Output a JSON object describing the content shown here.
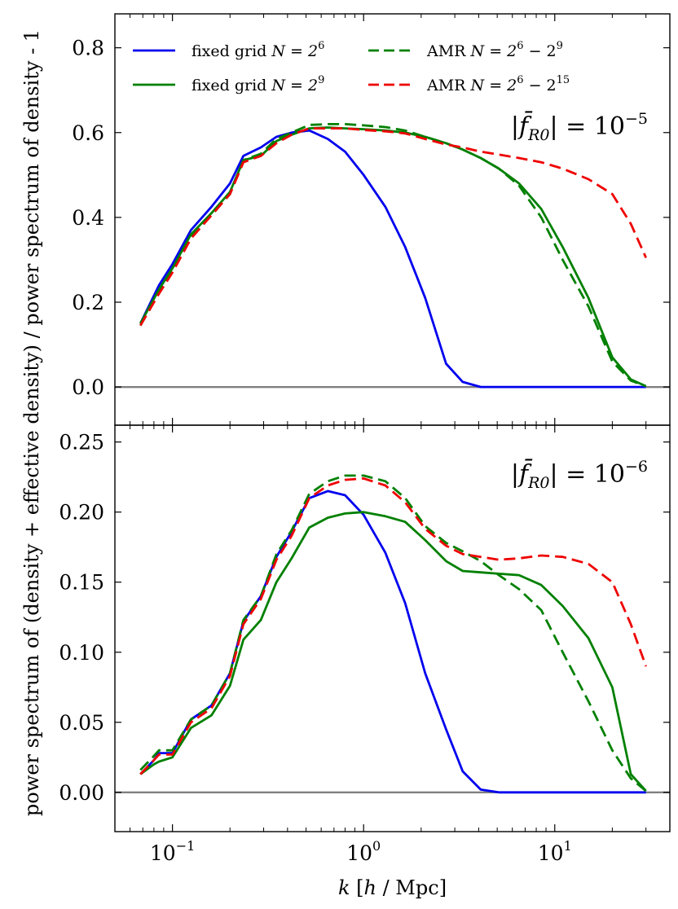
{
  "chart_data": {
    "type": "line",
    "ylabel": "power spectrum of (density + effective density) / power spectrum of density - 1",
    "xlabel": {
      "k": "k",
      "unit_open": "[",
      "unit_h": "h",
      "unit_sep": " / ",
      "unit_mpc": "Mpc",
      "unit_close": "]"
    },
    "xscale": "log",
    "xlim": [
      0.05,
      40
    ],
    "shared_x": true,
    "xticks": [
      {
        "value": 0.1,
        "base": "10",
        "exp": "−1"
      },
      {
        "value": 1,
        "base": "10",
        "exp": "0"
      },
      {
        "value": 10,
        "base": "10",
        "exp": "1"
      }
    ],
    "legend": {
      "placement": "top",
      "entries": [
        {
          "text": "fixed grid ",
          "math": "N = 2",
          "sup": "6",
          "color": "#0000ee",
          "dash": "solid"
        },
        {
          "text": "AMR ",
          "math": "N = 2",
          "sup": "6",
          "tail": " − 2",
          "tail_sup": "9",
          "color": "#008000",
          "dash": "dashed"
        },
        {
          "text": "fixed grid ",
          "math": "N = 2",
          "sup": "9",
          "color": "#008000",
          "dash": "solid"
        },
        {
          "text": "AMR ",
          "math": "N = 2",
          "sup": "6",
          "tail": " − 2",
          "tail_sup": "15",
          "color": "#ee0000",
          "dash": "dashed"
        }
      ]
    },
    "panels": [
      {
        "annotation": {
          "lhs": "|f̄",
          "sub": "R0",
          "rhs": "| = 10",
          "exp": "−5"
        },
        "ylim": [
          -0.09,
          0.88
        ],
        "yticks": [
          "0.0",
          "0.2",
          "0.4",
          "0.6",
          "0.8"
        ],
        "ytick_values": [
          0.0,
          0.2,
          0.4,
          0.6,
          0.8
        ],
        "hline": 0,
        "series": [
          {
            "key": "fixed_2e6",
            "color": "#0000ee",
            "dash": "solid",
            "x": [
              0.068,
              0.085,
              0.1,
              0.125,
              0.16,
              0.2,
              0.235,
              0.29,
              0.35,
              0.42,
              0.52,
              0.65,
              0.8,
              1.0,
              1.3,
              1.65,
              2.1,
              2.7,
              3.3,
              4.1,
              5.1,
              6.5,
              8.5,
              11,
              15,
              20,
              30
            ],
            "y": [
              0.15,
              0.24,
              0.29,
              0.37,
              0.425,
              0.48,
              0.545,
              0.565,
              0.59,
              0.6,
              0.605,
              0.585,
              0.555,
              0.5,
              0.425,
              0.33,
              0.21,
              0.055,
              0.012,
              0.0,
              0.0,
              0.0,
              0.0,
              0.0,
              0.0,
              0.0,
              0.0
            ]
          },
          {
            "key": "fixed_2e9",
            "color": "#008000",
            "dash": "solid",
            "x": [
              0.068,
              0.085,
              0.1,
              0.125,
              0.16,
              0.2,
              0.235,
              0.29,
              0.35,
              0.42,
              0.52,
              0.65,
              0.8,
              1.0,
              1.3,
              1.65,
              2.1,
              2.7,
              3.3,
              4.1,
              5.1,
              6.5,
              8.5,
              11,
              15,
              20,
              25,
              30
            ],
            "y": [
              0.15,
              0.23,
              0.28,
              0.36,
              0.41,
              0.46,
              0.535,
              0.545,
              0.58,
              0.595,
              0.61,
              0.612,
              0.61,
              0.608,
              0.605,
              0.6,
              0.59,
              0.575,
              0.56,
              0.54,
              0.515,
              0.48,
              0.42,
              0.33,
              0.21,
              0.07,
              0.018,
              0.002
            ]
          },
          {
            "key": "amr_2e6_2e9",
            "color": "#008000",
            "dash": "dashed",
            "x": [
              0.068,
              0.085,
              0.1,
              0.125,
              0.16,
              0.2,
              0.235,
              0.29,
              0.35,
              0.42,
              0.52,
              0.65,
              0.8,
              1.0,
              1.3,
              1.65,
              2.1,
              2.7,
              3.3,
              4.1,
              5.1,
              6.5,
              8.5,
              11,
              15,
              20,
              25,
              30
            ],
            "y": [
              0.145,
              0.225,
              0.275,
              0.355,
              0.405,
              0.455,
              0.535,
              0.55,
              0.585,
              0.6,
              0.618,
              0.62,
              0.62,
              0.617,
              0.613,
              0.605,
              0.59,
              0.575,
              0.56,
              0.54,
              0.515,
              0.475,
              0.4,
              0.3,
              0.19,
              0.06,
              0.015,
              0.002
            ]
          },
          {
            "key": "amr_2e6_2e15",
            "color": "#ee0000",
            "dash": "dashed",
            "x": [
              0.068,
              0.085,
              0.1,
              0.125,
              0.16,
              0.2,
              0.235,
              0.29,
              0.35,
              0.42,
              0.52,
              0.65,
              0.8,
              1.0,
              1.3,
              1.65,
              2.1,
              2.7,
              3.3,
              4.1,
              5.1,
              6.5,
              8.5,
              11,
              15,
              20,
              25,
              30
            ],
            "y": [
              0.145,
              0.22,
              0.27,
              0.35,
              0.405,
              0.455,
              0.53,
              0.545,
              0.575,
              0.595,
              0.61,
              0.61,
              0.61,
              0.606,
              0.603,
              0.598,
              0.585,
              0.572,
              0.565,
              0.555,
              0.548,
              0.54,
              0.53,
              0.515,
              0.49,
              0.455,
              0.385,
              0.305
            ]
          }
        ]
      },
      {
        "annotation": {
          "lhs": "|f̄",
          "sub": "R0",
          "rhs": "| = 10",
          "exp": "−6"
        },
        "ylim": [
          -0.028,
          0.262
        ],
        "yticks": [
          "0.00",
          "0.05",
          "0.10",
          "0.15",
          "0.20",
          "0.25"
        ],
        "ytick_values": [
          0.0,
          0.05,
          0.1,
          0.15,
          0.2,
          0.25
        ],
        "hline": 0,
        "series": [
          {
            "key": "fixed_2e6",
            "color": "#0000ee",
            "dash": "solid",
            "x": [
              0.068,
              0.08,
              0.085,
              0.1,
              0.125,
              0.16,
              0.2,
              0.235,
              0.29,
              0.35,
              0.42,
              0.52,
              0.65,
              0.8,
              1.0,
              1.3,
              1.65,
              2.1,
              2.7,
              3.3,
              4.1,
              5.1,
              6.5,
              8.5,
              11,
              15,
              20,
              30
            ],
            "y": [
              0.013,
              0.023,
              0.028,
              0.028,
              0.052,
              0.062,
              0.085,
              0.122,
              0.14,
              0.168,
              0.186,
              0.21,
              0.215,
              0.212,
              0.198,
              0.171,
              0.135,
              0.085,
              0.045,
              0.015,
              0.002,
              0.0,
              0.0,
              0.0,
              0.0,
              0.0,
              0.0,
              0.0
            ]
          },
          {
            "key": "fixed_2e9",
            "color": "#008000",
            "dash": "solid",
            "x": [
              0.068,
              0.08,
              0.085,
              0.1,
              0.125,
              0.16,
              0.2,
              0.235,
              0.29,
              0.35,
              0.42,
              0.52,
              0.65,
              0.8,
              1.0,
              1.3,
              1.65,
              2.1,
              2.7,
              3.3,
              4.1,
              5.1,
              6.5,
              8.5,
              11,
              15,
              20,
              25,
              30
            ],
            "y": [
              0.013,
              0.02,
              0.022,
              0.025,
              0.046,
              0.055,
              0.076,
              0.109,
              0.123,
              0.15,
              0.167,
              0.189,
              0.196,
              0.199,
              0.2,
              0.197,
              0.193,
              0.18,
              0.165,
              0.158,
              0.157,
              0.156,
              0.155,
              0.148,
              0.133,
              0.11,
              0.075,
              0.013,
              0.001
            ]
          },
          {
            "key": "amr_2e6_2e9",
            "color": "#008000",
            "dash": "dashed",
            "x": [
              0.068,
              0.08,
              0.085,
              0.1,
              0.125,
              0.16,
              0.2,
              0.235,
              0.29,
              0.35,
              0.42,
              0.52,
              0.65,
              0.8,
              1.0,
              1.3,
              1.65,
              2.1,
              2.7,
              3.3,
              4.1,
              5.1,
              6.5,
              8.5,
              11,
              15,
              20,
              25,
              30
            ],
            "y": [
              0.016,
              0.026,
              0.03,
              0.03,
              0.052,
              0.062,
              0.085,
              0.123,
              0.14,
              0.17,
              0.187,
              0.213,
              0.222,
              0.226,
              0.226,
              0.222,
              0.21,
              0.19,
              0.178,
              0.172,
              0.165,
              0.155,
              0.145,
              0.13,
              0.1,
              0.065,
              0.03,
              0.01,
              0.001
            ]
          },
          {
            "key": "amr_2e6_2e15",
            "color": "#ee0000",
            "dash": "dashed",
            "x": [
              0.068,
              0.08,
              0.085,
              0.1,
              0.125,
              0.16,
              0.2,
              0.235,
              0.29,
              0.35,
              0.42,
              0.52,
              0.65,
              0.8,
              1.0,
              1.3,
              1.65,
              2.1,
              2.7,
              3.3,
              4.1,
              5.1,
              6.5,
              8.5,
              11,
              15,
              20,
              25,
              30
            ],
            "y": [
              0.013,
              0.023,
              0.027,
              0.027,
              0.05,
              0.06,
              0.083,
              0.12,
              0.138,
              0.166,
              0.183,
              0.21,
              0.219,
              0.223,
              0.224,
              0.219,
              0.207,
              0.188,
              0.176,
              0.17,
              0.168,
              0.166,
              0.167,
              0.169,
              0.168,
              0.163,
              0.15,
              0.12,
              0.09
            ]
          }
        ]
      }
    ]
  }
}
